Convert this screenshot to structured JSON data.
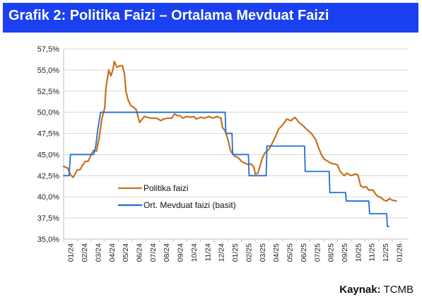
{
  "header": {
    "title": "Grafik 2: Politika Faizi – Ortalama Mevduat Faizi"
  },
  "footer": {
    "source_label": "Kaynak:",
    "source_value": "TCMB"
  },
  "colors": {
    "title_bg": "#1a40f0",
    "policy": "#c8701c",
    "deposit": "#1f6fd0",
    "grid": "#d9d9d9",
    "axis": "#bfbfbf"
  },
  "chart_data": {
    "type": "line",
    "title": "Grafik 2: Politika Faizi – Ortalama Mevduat Faizi",
    "xlabel": "",
    "ylabel": "",
    "x_range": [
      0,
      25.2
    ],
    "ylim": [
      35,
      57.5
    ],
    "y_ticks": [
      35,
      37.5,
      40,
      42.5,
      45,
      47.5,
      50,
      52.5,
      55,
      57.5
    ],
    "y_tick_labels": [
      "35,0%",
      "37,5%",
      "40,0%",
      "42,5%",
      "45,0%",
      "47,5%",
      "50,0%",
      "52,5%",
      "55,0%",
      "57,5%"
    ],
    "categories": [
      "01/24",
      "02/24",
      "03/24",
      "04/24",
      "05/24",
      "06/24",
      "07/24",
      "08/24",
      "09/24",
      "10/24",
      "11/24",
      "12/24",
      "01/25",
      "02/25",
      "03/25",
      "04/25",
      "05/25",
      "06/25",
      "07/25",
      "08/25",
      "09/25",
      "10/25",
      "11/25",
      "12/25",
      "01/26"
    ],
    "grid": "horizontal",
    "legend_position": "center-left",
    "series": [
      {
        "name": "Politika faizi",
        "color": "#c8701c",
        "points": [
          [
            0,
            43.6
          ],
          [
            0.3,
            43.4
          ],
          [
            0.5,
            42.6
          ],
          [
            0.7,
            42.3
          ],
          [
            1.0,
            43.2
          ],
          [
            1.2,
            43.2
          ],
          [
            1.4,
            43.8
          ],
          [
            1.6,
            44.2
          ],
          [
            1.8,
            44.2
          ],
          [
            2.0,
            45.0
          ],
          [
            2.2,
            45.5
          ],
          [
            2.4,
            45.4
          ],
          [
            2.6,
            47.0
          ],
          [
            2.8,
            49.3
          ],
          [
            3.0,
            50.5
          ],
          [
            3.1,
            53.0
          ],
          [
            3.3,
            55.0
          ],
          [
            3.45,
            54.3
          ],
          [
            3.6,
            55.0
          ],
          [
            3.7,
            56.0
          ],
          [
            3.9,
            55.3
          ],
          [
            4.1,
            55.5
          ],
          [
            4.3,
            55.5
          ],
          [
            4.45,
            54.5
          ],
          [
            4.55,
            52.5
          ],
          [
            4.7,
            51.5
          ],
          [
            4.9,
            50.8
          ],
          [
            5.1,
            50.6
          ],
          [
            5.3,
            50.3
          ],
          [
            5.45,
            49.4
          ],
          [
            5.55,
            48.8
          ],
          [
            5.7,
            49.1
          ],
          [
            5.9,
            49.5
          ],
          [
            6.1,
            49.4
          ],
          [
            6.4,
            49.3
          ],
          [
            6.8,
            49.3
          ],
          [
            7.1,
            49.0
          ],
          [
            7.3,
            49.2
          ],
          [
            7.6,
            49.3
          ],
          [
            7.9,
            49.3
          ],
          [
            8.1,
            49.8
          ],
          [
            8.3,
            49.6
          ],
          [
            8.5,
            49.6
          ],
          [
            8.7,
            49.3
          ],
          [
            9.0,
            49.5
          ],
          [
            9.3,
            49.4
          ],
          [
            9.5,
            49.5
          ],
          [
            9.7,
            49.2
          ],
          [
            10.0,
            49.4
          ],
          [
            10.3,
            49.3
          ],
          [
            10.6,
            49.5
          ],
          [
            10.9,
            49.3
          ],
          [
            11.2,
            49.5
          ],
          [
            11.5,
            49.3
          ],
          [
            11.6,
            48.2
          ],
          [
            11.8,
            47.8
          ],
          [
            12.0,
            46.8
          ],
          [
            12.2,
            45.4
          ],
          [
            12.5,
            44.8
          ],
          [
            12.7,
            44.7
          ],
          [
            13.0,
            44.2
          ],
          [
            13.2,
            44.0
          ],
          [
            13.5,
            43.8
          ],
          [
            13.7,
            43.9
          ],
          [
            13.9,
            43.5
          ],
          [
            14.0,
            42.7
          ],
          [
            14.2,
            42.8
          ],
          [
            14.5,
            44.5
          ],
          [
            14.7,
            45.2
          ],
          [
            15.0,
            45.6
          ],
          [
            15.2,
            46.2
          ],
          [
            15.5,
            47.2
          ],
          [
            15.7,
            48.0
          ],
          [
            16.0,
            48.5
          ],
          [
            16.3,
            49.2
          ],
          [
            16.6,
            49.0
          ],
          [
            16.9,
            49.4
          ],
          [
            17.2,
            48.8
          ],
          [
            17.5,
            48.4
          ],
          [
            17.8,
            47.9
          ],
          [
            18.1,
            47.5
          ],
          [
            18.4,
            46.8
          ],
          [
            18.6,
            45.9
          ],
          [
            18.8,
            45.1
          ],
          [
            19.0,
            44.5
          ],
          [
            19.2,
            44.3
          ],
          [
            19.5,
            44.0
          ],
          [
            19.7,
            43.9
          ],
          [
            20.0,
            43.8
          ],
          [
            20.2,
            43.0
          ],
          [
            20.5,
            42.5
          ],
          [
            20.7,
            42.8
          ],
          [
            21.0,
            42.5
          ],
          [
            21.3,
            42.7
          ],
          [
            21.5,
            42.6
          ],
          [
            21.7,
            41.3
          ],
          [
            21.9,
            41.1
          ],
          [
            22.1,
            41.2
          ],
          [
            22.3,
            40.8
          ],
          [
            22.6,
            40.8
          ],
          [
            22.8,
            40.3
          ],
          [
            23.0,
            40.0
          ],
          [
            23.2,
            39.9
          ],
          [
            23.4,
            39.6
          ],
          [
            23.6,
            39.5
          ],
          [
            23.8,
            39.8
          ],
          [
            24.0,
            39.6
          ],
          [
            24.3,
            39.5
          ]
        ]
      },
      {
        "name": "Ort. Mevduat faizi (basit)",
        "color": "#1f6fd0",
        "points": [
          [
            0,
            42.5
          ],
          [
            0.4,
            42.5
          ],
          [
            0.5,
            45.0
          ],
          [
            2.2,
            45.0
          ],
          [
            2.35,
            46.0
          ],
          [
            2.5,
            48.0
          ],
          [
            2.7,
            50.0
          ],
          [
            11.8,
            50.0
          ],
          [
            11.85,
            47.5
          ],
          [
            12.3,
            47.5
          ],
          [
            12.35,
            45.0
          ],
          [
            13.5,
            45.0
          ],
          [
            13.55,
            42.5
          ],
          [
            14.8,
            42.5
          ],
          [
            14.85,
            46.0
          ],
          [
            17.6,
            46.0
          ],
          [
            17.65,
            43.0
          ],
          [
            19.4,
            43.0
          ],
          [
            19.45,
            40.5
          ],
          [
            20.6,
            40.5
          ],
          [
            20.65,
            39.5
          ],
          [
            22.3,
            39.5
          ],
          [
            22.35,
            38.0
          ],
          [
            23.6,
            38.0
          ],
          [
            23.65,
            36.5
          ],
          [
            23.75,
            36.5
          ]
        ]
      }
    ]
  }
}
